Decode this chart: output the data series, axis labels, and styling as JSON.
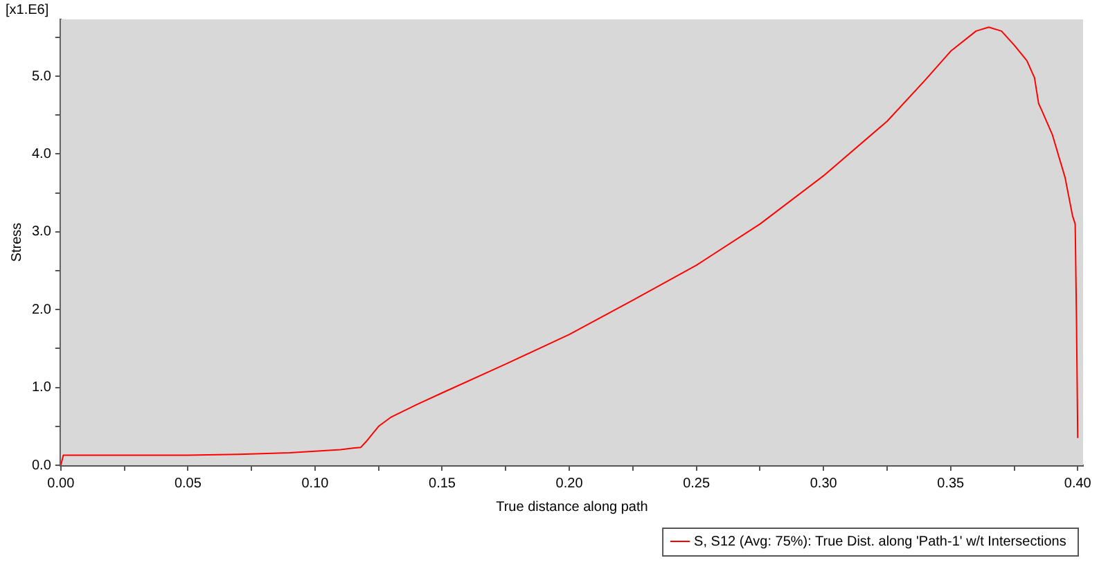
{
  "chart_data": {
    "type": "line",
    "xlabel": "True distance along path",
    "ylabel": "Stress",
    "annotations": [
      "[x1.E6]"
    ],
    "x": [
      0,
      0.001,
      0.02,
      0.05,
      0.07,
      0.09,
      0.1,
      0.11,
      0.115,
      0.118,
      0.12,
      0.122,
      0.125,
      0.13,
      0.14,
      0.15,
      0.175,
      0.2,
      0.225,
      0.25,
      0.275,
      0.3,
      0.325,
      0.34,
      0.35,
      0.36,
      0.365,
      0.37,
      0.375,
      0.38,
      0.383,
      0.3846,
      0.386,
      0.39,
      0.395,
      0.398,
      0.399,
      0.3995,
      0.4
    ],
    "series": [
      {
        "name": "S, S12 (Avg: 75%): True Dist. along 'Path-1' w/t Intersections",
        "color": "#ff0000",
        "values": [
          0,
          0.13,
          0.13,
          0.13,
          0.14,
          0.16,
          0.18,
          0.2,
          0.22,
          0.23,
          0.3,
          0.38,
          0.5,
          0.62,
          0.78,
          0.93,
          1.3,
          1.68,
          2.12,
          2.57,
          3.1,
          3.72,
          4.42,
          4.95,
          5.32,
          5.58,
          5.63,
          5.58,
          5.4,
          5.2,
          4.98,
          4.65,
          4.55,
          4.25,
          3.7,
          3.2,
          3.1,
          1.9,
          0.35
        ]
      }
    ],
    "xlim": [
      0,
      0.4021
    ],
    "ylim": [
      0,
      5.73
    ],
    "xticks": [
      {
        "value": 0,
        "label": "0.00"
      },
      {
        "value": 0.025,
        "label": null
      },
      {
        "value": 0.05,
        "label": "0.05"
      },
      {
        "value": 0.075,
        "label": null
      },
      {
        "value": 0.1,
        "label": "0.10"
      },
      {
        "value": 0.125,
        "label": null
      },
      {
        "value": 0.15,
        "label": "0.15"
      },
      {
        "value": 0.175,
        "label": null
      },
      {
        "value": 0.2,
        "label": "0.20"
      },
      {
        "value": 0.225,
        "label": null
      },
      {
        "value": 0.25,
        "label": "0.25"
      },
      {
        "value": 0.275,
        "label": null
      },
      {
        "value": 0.3,
        "label": "0.30"
      },
      {
        "value": 0.325,
        "label": null
      },
      {
        "value": 0.35,
        "label": "0.35"
      },
      {
        "value": 0.375,
        "label": null
      },
      {
        "value": 0.4,
        "label": "0.40"
      }
    ],
    "yticks": [
      {
        "value": 0,
        "label": "0.0"
      },
      {
        "value": 0.5,
        "label": null
      },
      {
        "value": 1,
        "label": "1.0"
      },
      {
        "value": 1.5,
        "label": null
      },
      {
        "value": 2,
        "label": "2.0"
      },
      {
        "value": 2.5,
        "label": null
      },
      {
        "value": 3,
        "label": "3.0"
      },
      {
        "value": 3.5,
        "label": null
      },
      {
        "value": 4,
        "label": "4.0"
      },
      {
        "value": 4.5,
        "label": null
      },
      {
        "value": 5,
        "label": "5.0"
      },
      {
        "value": 5.5,
        "label": null
      }
    ],
    "legend": "bottom right",
    "marker": "none",
    "line_style": "solid"
  }
}
